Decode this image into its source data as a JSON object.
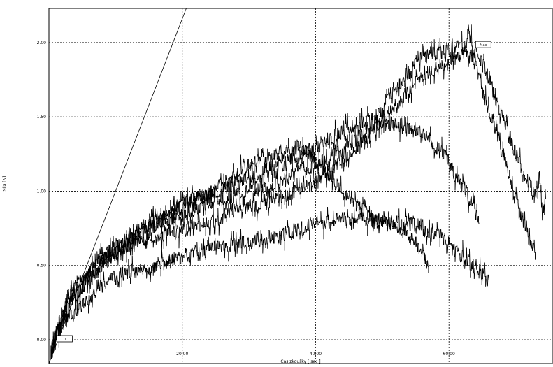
{
  "chart_data": {
    "type": "line",
    "xlabel": "Čas zkoušky [ sec ]",
    "ylabel": "Síla [N]",
    "xlim": [
      0,
      75.5
    ],
    "ylim": [
      -0.16,
      2.23
    ],
    "x_ticks": [
      20,
      40,
      60
    ],
    "x_tick_labels": [
      "20.00",
      "40.00",
      "60.00"
    ],
    "y_ticks": [
      0,
      0.5,
      1.0,
      1.5,
      2.0
    ],
    "y_tick_labels": [
      "0.00",
      "0.50",
      "1.00",
      "1.50",
      "2.00"
    ],
    "grid": "dashed",
    "reference_line": {
      "x": [
        0,
        20.6
      ],
      "y": [
        -0.16,
        2.23
      ]
    },
    "markers": [
      {
        "label": "Max",
        "x": 64.0,
        "y": 1.98
      },
      {
        "label": "0",
        "x": 1.2,
        "y": 0.0
      }
    ],
    "series": [
      {
        "x": [
          0.3,
          1,
          2,
          3,
          4,
          6,
          8,
          10,
          12,
          14,
          16,
          18,
          20,
          22,
          24,
          26,
          28,
          30,
          32,
          34,
          36,
          38,
          40,
          42,
          44,
          46,
          48,
          50,
          52,
          54,
          56,
          58,
          60,
          62,
          63,
          64,
          65,
          66,
          67,
          68,
          69,
          70,
          71,
          72,
          73,
          73.5,
          74,
          74.5
        ],
        "y": [
          -0.12,
          0.05,
          0.2,
          0.3,
          0.38,
          0.45,
          0.55,
          0.62,
          0.7,
          0.75,
          0.8,
          0.82,
          0.85,
          0.88,
          0.93,
          0.95,
          0.97,
          1.0,
          1.02,
          1.05,
          1.1,
          1.15,
          1.18,
          1.22,
          1.28,
          1.35,
          1.42,
          1.55,
          1.7,
          1.8,
          1.9,
          1.93,
          1.95,
          1.97,
          2.03,
          1.95,
          1.85,
          1.75,
          1.62,
          1.5,
          1.38,
          1.25,
          1.15,
          1.05,
          0.95,
          1.08,
          0.85,
          0.95
        ]
      },
      {
        "x": [
          0.3,
          1.5,
          3,
          5,
          7,
          9,
          11,
          13,
          15,
          17,
          19,
          21,
          23,
          25,
          27,
          29,
          31,
          33,
          35,
          37,
          39,
          41,
          43,
          45,
          47,
          49,
          51,
          53,
          55,
          57,
          59,
          61,
          62,
          63,
          64,
          65,
          66,
          67,
          68,
          69,
          70,
          71,
          72,
          73
        ],
        "y": [
          -0.1,
          0.1,
          0.25,
          0.35,
          0.45,
          0.55,
          0.6,
          0.65,
          0.68,
          0.7,
          0.72,
          0.75,
          0.78,
          0.8,
          0.85,
          0.88,
          0.9,
          0.93,
          0.96,
          1.0,
          1.05,
          1.12,
          1.18,
          1.25,
          1.33,
          1.42,
          1.52,
          1.62,
          1.73,
          1.8,
          1.85,
          1.9,
          1.92,
          1.93,
          1.85,
          1.7,
          1.55,
          1.4,
          1.25,
          1.1,
          0.95,
          0.8,
          0.68,
          0.58
        ]
      },
      {
        "x": [
          0.3,
          2,
          4,
          6,
          8,
          10,
          12,
          14,
          16,
          18,
          20,
          22,
          24,
          26,
          28,
          30,
          32,
          34,
          36,
          38,
          40,
          42,
          44,
          46,
          48,
          50,
          52,
          54,
          56,
          58,
          60,
          61,
          62,
          63,
          64,
          64.5
        ],
        "y": [
          -0.08,
          0.15,
          0.3,
          0.4,
          0.5,
          0.58,
          0.65,
          0.72,
          0.78,
          0.82,
          0.9,
          0.95,
          0.98,
          1.02,
          1.05,
          1.08,
          1.1,
          1.15,
          1.2,
          1.25,
          1.3,
          1.35,
          1.4,
          1.45,
          1.47,
          1.46,
          1.45,
          1.42,
          1.38,
          1.3,
          1.2,
          1.1,
          1.05,
          0.95,
          0.85,
          0.78
        ]
      },
      {
        "x": [
          0.3,
          2,
          4,
          6,
          8,
          10,
          12,
          14,
          16,
          18,
          20,
          22,
          24,
          26,
          28,
          30,
          32,
          34,
          36,
          38,
          40,
          42,
          44,
          46,
          48,
          50,
          52,
          54,
          55,
          56,
          57
        ],
        "y": [
          -0.06,
          0.18,
          0.35,
          0.45,
          0.55,
          0.62,
          0.68,
          0.75,
          0.8,
          0.85,
          0.92,
          0.97,
          0.98,
          1.05,
          1.12,
          1.18,
          1.22,
          1.25,
          1.28,
          1.3,
          1.2,
          1.1,
          1.0,
          0.92,
          0.85,
          0.8,
          0.75,
          0.7,
          0.65,
          0.58,
          0.5
        ]
      },
      {
        "x": [
          0.3,
          2,
          4,
          6,
          8,
          10,
          12,
          14,
          16,
          18,
          20,
          22,
          24,
          26,
          28,
          30,
          32,
          34,
          36,
          38,
          40,
          42,
          44,
          46,
          48,
          50,
          52,
          54,
          56,
          58,
          59,
          60,
          61,
          62,
          63,
          64,
          65,
          66
        ],
        "y": [
          -0.04,
          0.1,
          0.2,
          0.28,
          0.36,
          0.42,
          0.46,
          0.48,
          0.5,
          0.52,
          0.56,
          0.58,
          0.6,
          0.62,
          0.64,
          0.66,
          0.68,
          0.7,
          0.72,
          0.75,
          0.78,
          0.8,
          0.81,
          0.82,
          0.81,
          0.8,
          0.79,
          0.78,
          0.75,
          0.72,
          0.68,
          0.64,
          0.6,
          0.56,
          0.52,
          0.48,
          0.44,
          0.4
        ]
      }
    ]
  }
}
